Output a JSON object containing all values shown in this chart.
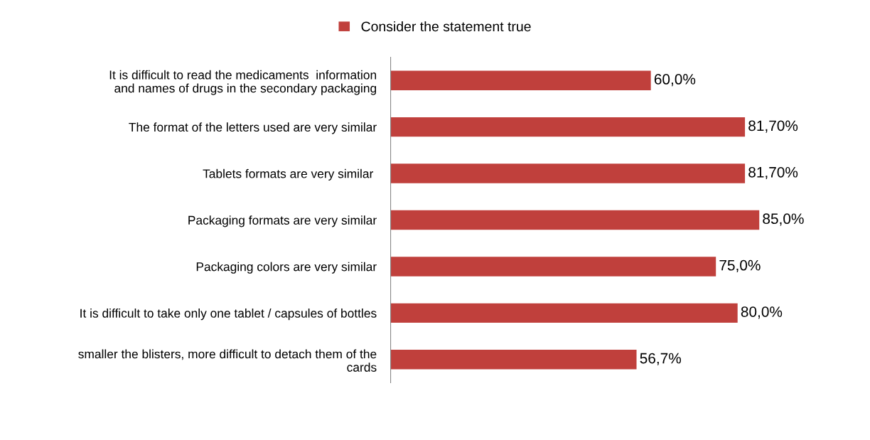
{
  "chart_data": {
    "type": "bar",
    "orientation": "horizontal",
    "categories": [
      "It is difficult to read the medicaments  information\nand names of drugs in the secondary packaging",
      "The format of the letters used are very similar",
      "Tablets formats are very similar ",
      "Packaging formats are very similar",
      "Packaging colors are very similar",
      "It is difficult to take only one tablet / capsules of bottles",
      "smaller the blisters, more difficult to detach them of the\ncards"
    ],
    "series": [
      {
        "name": "Consider the statement true",
        "color": "#c0403c",
        "values": [
          60.0,
          81.7,
          81.7,
          85.0,
          75.0,
          80.0,
          56.7
        ],
        "value_labels": [
          "60,0%",
          "81,70%",
          "81,70%",
          "85,0%",
          "75,0%",
          "80,0%",
          "56,7%"
        ]
      }
    ],
    "legend": "top",
    "grid": false,
    "tick_labels": "y"
  }
}
